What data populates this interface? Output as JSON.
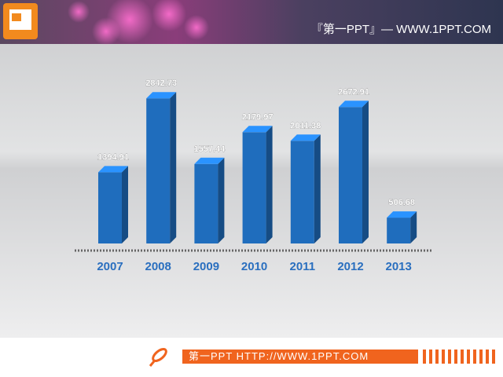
{
  "header_text": "『第一PPT』— WWW.1PPT.COM",
  "footer_text": "第一PPT HTTP://WWW.1PPT.COM",
  "chart_data": {
    "type": "bar",
    "categories": [
      "2007",
      "2008",
      "2009",
      "2010",
      "2011",
      "2012",
      "2013"
    ],
    "values": [
      1394.91,
      2842.73,
      1557.44,
      2179.97,
      2011.38,
      2672.91,
      506.68
    ],
    "color": "#1f6dbd"
  }
}
